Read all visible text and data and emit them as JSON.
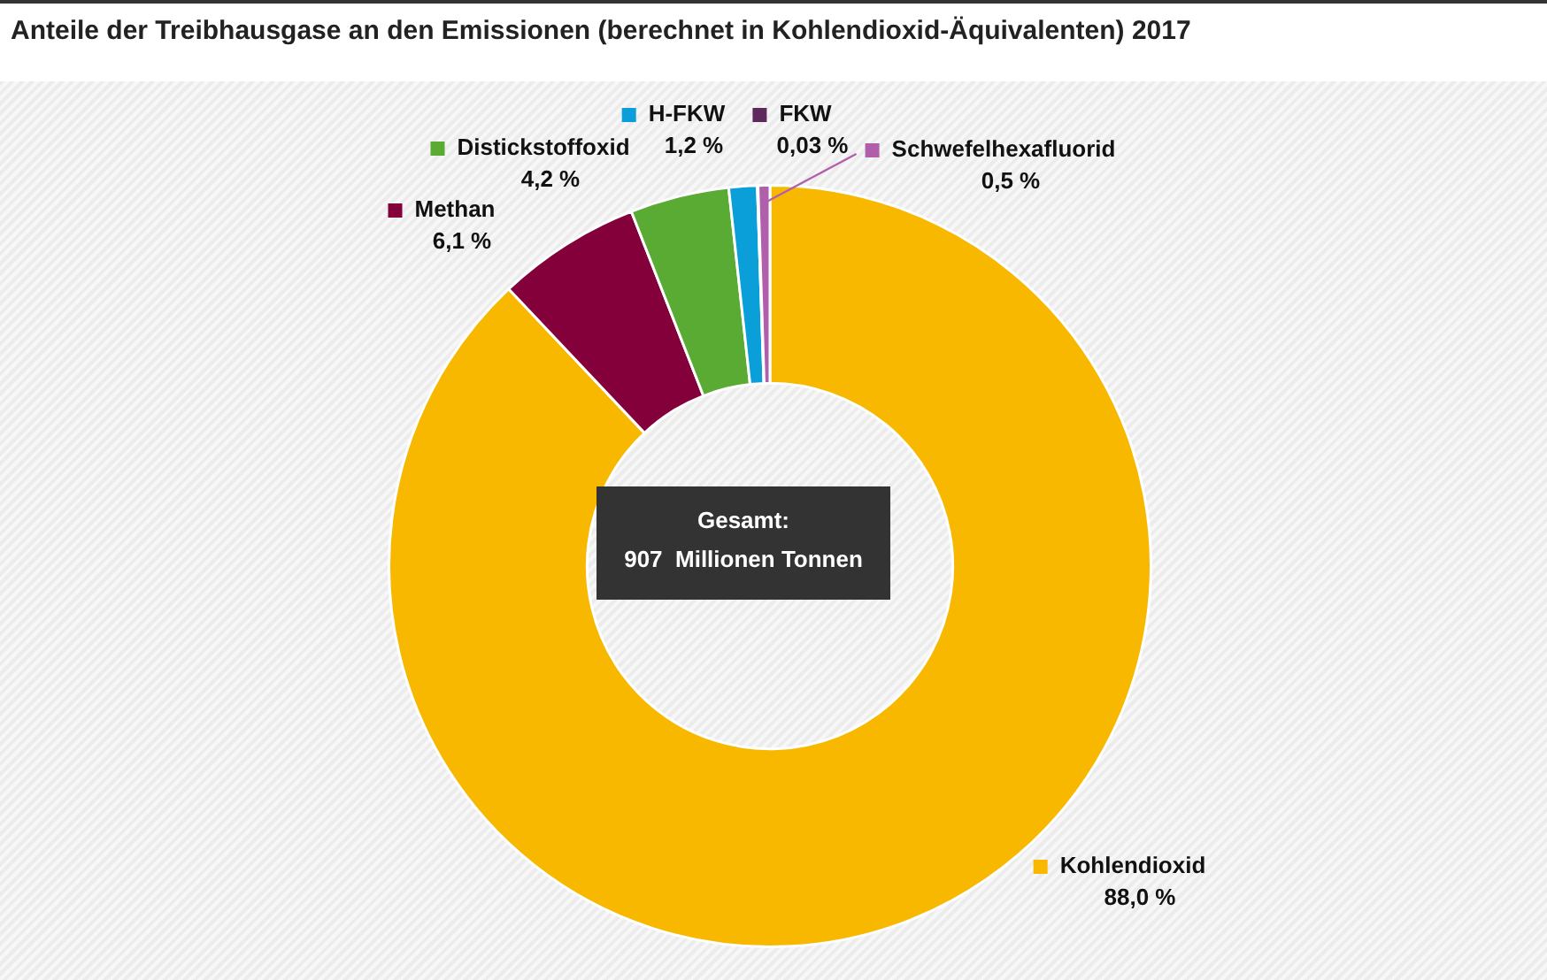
{
  "chart_data": {
    "type": "donut",
    "title": "Anteile der Treibhausgase an den Emissionen (berechnet in Kohlendioxid-Äquivalenten) 2017",
    "categories": [
      "Kohlendioxid",
      "Methan",
      "Distickstoffoxid",
      "H-FKW",
      "FKW",
      "Schwefelhexafluorid"
    ],
    "values": [
      88.0,
      6.1,
      4.2,
      1.2,
      0.03,
      0.5
    ],
    "value_labels": [
      "88,0 %",
      "6,1 %",
      "4,2 %",
      "1,2 %",
      "0,03 %",
      "0,5 %"
    ],
    "colors": [
      "#f9b800",
      "#84003a",
      "#5aab33",
      "#0a9fd8",
      "#5e2a5e",
      "#b060aa"
    ],
    "annotations": [
      "Gesamt:",
      "907  Millionen Tonnen"
    ],
    "legend": "top"
  }
}
